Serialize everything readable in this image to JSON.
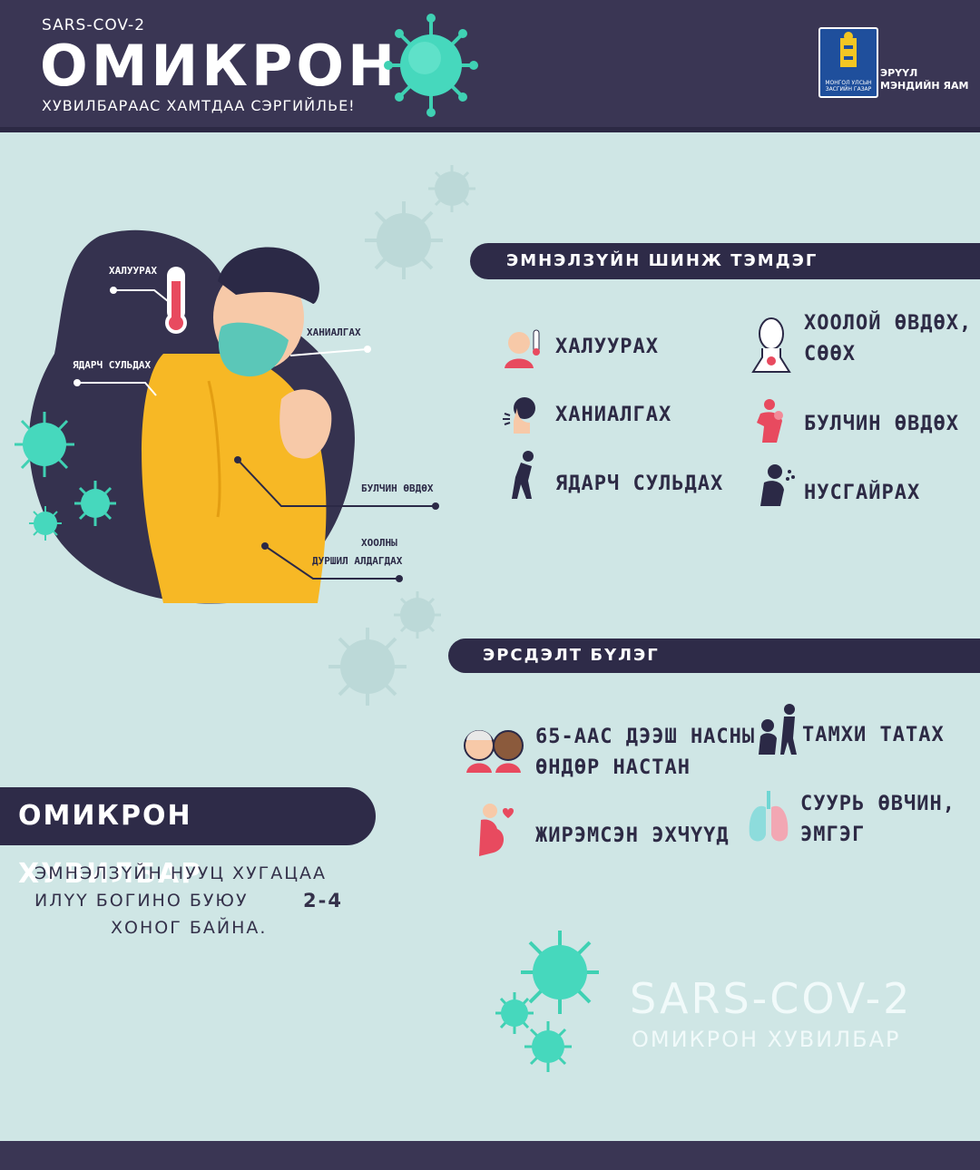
{
  "header": {
    "subtitle": "SARS-COV-2",
    "title": "ОМИКРОН",
    "tagline": "ХУВИЛБАРААС ХАМТДАА СЭРГИЙЛЬЕ!",
    "ministry_line1": "ЭРҮҮЛ",
    "ministry_line2": "МЭНДИЙН ЯАМ",
    "logo_caption_1": "МОНГОЛ УЛСЫН",
    "logo_caption_2": "ЗАСГИЙН ГАЗАР"
  },
  "illustration": {
    "callouts": {
      "fever": "ХАЛУУРАХ",
      "cough": "ХАНИАЛГАХ",
      "fatigue": "ЯДАРЧ СУЛЬДАХ",
      "muscle": "БУЛЧИН ӨВДӨХ",
      "appetite_1": "ХООЛНЫ",
      "appetite_2": "ДУРШИЛ АЛДАГДАХ"
    }
  },
  "symptoms": {
    "heading": "ЭМНЭЛЗҮЙН ШИНЖ ТЭМДЭГ",
    "items": [
      {
        "line1": "ХАЛУУРАХ",
        "line2": "",
        "icon": "fever-icon"
      },
      {
        "line1": "ХООЛОЙ ӨВДӨХ,",
        "line2": "СӨӨХ",
        "icon": "sore-throat-icon"
      },
      {
        "line1": "ХАНИАЛГАХ",
        "line2": "",
        "icon": "cough-icon"
      },
      {
        "line1": "БУЛЧИН ӨВДӨХ",
        "line2": "",
        "icon": "muscle-pain-icon"
      },
      {
        "line1": "ЯДАРЧ СУЛЬДАХ",
        "line2": "",
        "icon": "fatigue-icon"
      },
      {
        "line1": "НУСГАЙРАХ",
        "line2": "",
        "icon": "runny-nose-icon"
      }
    ]
  },
  "risk": {
    "heading": "ЭРСДЭЛТ БҮЛЭГ",
    "items": [
      {
        "line1": "65-ААС ДЭЭШ НАСНЫ",
        "line2": "ӨНДӨР НАСТАН",
        "icon": "elderly-icon"
      },
      {
        "line1": "ТАМХИ ТАТАХ",
        "line2": "",
        "icon": "smoking-icon"
      },
      {
        "line1": "СУУРЬ ӨВЧИН,",
        "line2": "ЭМГЭГ",
        "icon": "lungs-icon"
      },
      {
        "line1": "ЖИРЭМСЭН ЭХЧҮҮД",
        "line2": "",
        "icon": "pregnant-icon"
      }
    ]
  },
  "omicron": {
    "heading": "ОМИКРОН ХУВИЛБАР",
    "desc_1": "ЭМНЭЛЗҮЙН НУУЦ ХУГАЦАА",
    "desc_2": "ИЛҮҮ БОГИНО БУЮУ",
    "duration": "2-4",
    "desc_3": "ХОНОГ БАЙНА."
  },
  "footer": {
    "title": "SARS-COV-2",
    "subtitle": "ОМИКРОН ХУВИЛБАР"
  },
  "colors": {
    "navy": "#2e2b48",
    "header": "#3a3654",
    "background": "#cfe6e5",
    "virus": "#3fd1b3",
    "jacket": "#f7b825",
    "mask": "#5bc7b8"
  }
}
